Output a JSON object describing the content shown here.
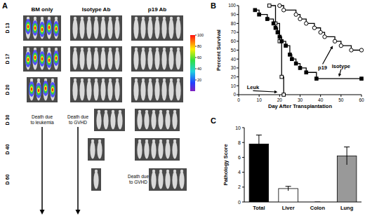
{
  "panel_labels": [
    "A",
    "B",
    "C"
  ],
  "panel_a": {
    "columns": [
      "BM only",
      "Isotype Ab",
      "p19 Ab"
    ],
    "bioluminescence": [
      true,
      false,
      false
    ],
    "rows": [
      {
        "label": "D 13",
        "mice": [
          5,
          7,
          7
        ]
      },
      {
        "label": "D 17",
        "mice": [
          5,
          7,
          7
        ]
      },
      {
        "label": "D 20",
        "mice": [
          4,
          7,
          7
        ]
      },
      {
        "label": "D 30",
        "mice": [
          null,
          4,
          6
        ]
      },
      {
        "label": "D 40",
        "mice": [
          null,
          2,
          6
        ]
      },
      {
        "label": "D 60",
        "mice": [
          null,
          1,
          5
        ]
      }
    ],
    "notes": [
      {
        "text": "Death due to leukemia",
        "row": 3,
        "column": 0
      },
      {
        "text": "Death due to GVHD",
        "row": 3,
        "column": 1
      },
      {
        "text": "Death due to GVHD",
        "row": 5,
        "column": 2
      }
    ],
    "colorbar": {
      "range": [
        0,
        100
      ],
      "ticks": [
        20,
        40,
        60,
        80,
        100
      ]
    }
  },
  "chart_data": [
    {
      "type": "line",
      "xlabel": "Day After Transplantation",
      "ylabel": "Percent Survival",
      "xlim": [
        0,
        60
      ],
      "ylim": [
        0,
        100
      ],
      "xticks": [
        0,
        10,
        20,
        30,
        40,
        50,
        60
      ],
      "yticks": [
        0,
        10,
        20,
        30,
        40,
        50,
        60,
        70,
        80,
        90,
        100
      ],
      "series": [
        {
          "color": "#000000",
          "marker": "square-open",
          "line_style": "step",
          "x": [
            15,
            18,
            20,
            21,
            22
          ],
          "values": [
            100,
            80,
            60,
            20,
            0
          ]
        },
        {
          "color": "#000000",
          "marker": "square",
          "line_style": "step",
          "x": [
            8,
            10,
            14,
            17,
            18,
            19,
            20,
            21,
            23,
            25,
            26,
            28,
            30,
            33,
            38,
            60
          ],
          "values": [
            95,
            90,
            85,
            80,
            75,
            70,
            65,
            60,
            55,
            45,
            40,
            35,
            30,
            25,
            18,
            18
          ]
        },
        {
          "color": "#000000",
          "marker": "circle-open",
          "line_style": "step",
          "x": [
            20,
            22,
            28,
            30,
            33,
            37,
            40,
            42,
            47,
            50,
            55,
            60
          ],
          "values": [
            100,
            95,
            90,
            85,
            80,
            75,
            70,
            65,
            60,
            55,
            50,
            50
          ]
        }
      ],
      "annotations": [
        {
          "text": "Leuk",
          "x": 7,
          "y": 6,
          "arrow": [
            19,
            3
          ]
        },
        {
          "text": "p19",
          "x": 41,
          "y": 28,
          "arrow": [
            46,
            55
          ]
        },
        {
          "text": "Isotype",
          "x": 50,
          "y": 30,
          "arrow": [
            49,
            20
          ]
        }
      ]
    },
    {
      "type": "bar",
      "ylabel": "Pathology Score",
      "categories": [
        "Total",
        "Liver",
        "Colon",
        "Lung"
      ],
      "values": [
        7.8,
        1.8,
        0,
        6.2
      ],
      "errors": [
        1.2,
        0.3,
        0,
        1.2
      ],
      "colors": [
        "#000000",
        "#ffffff",
        "#ffffff",
        "#999999"
      ],
      "ylim": [
        0,
        10
      ],
      "yticks": [
        0,
        2,
        4,
        6,
        8,
        10
      ]
    }
  ]
}
